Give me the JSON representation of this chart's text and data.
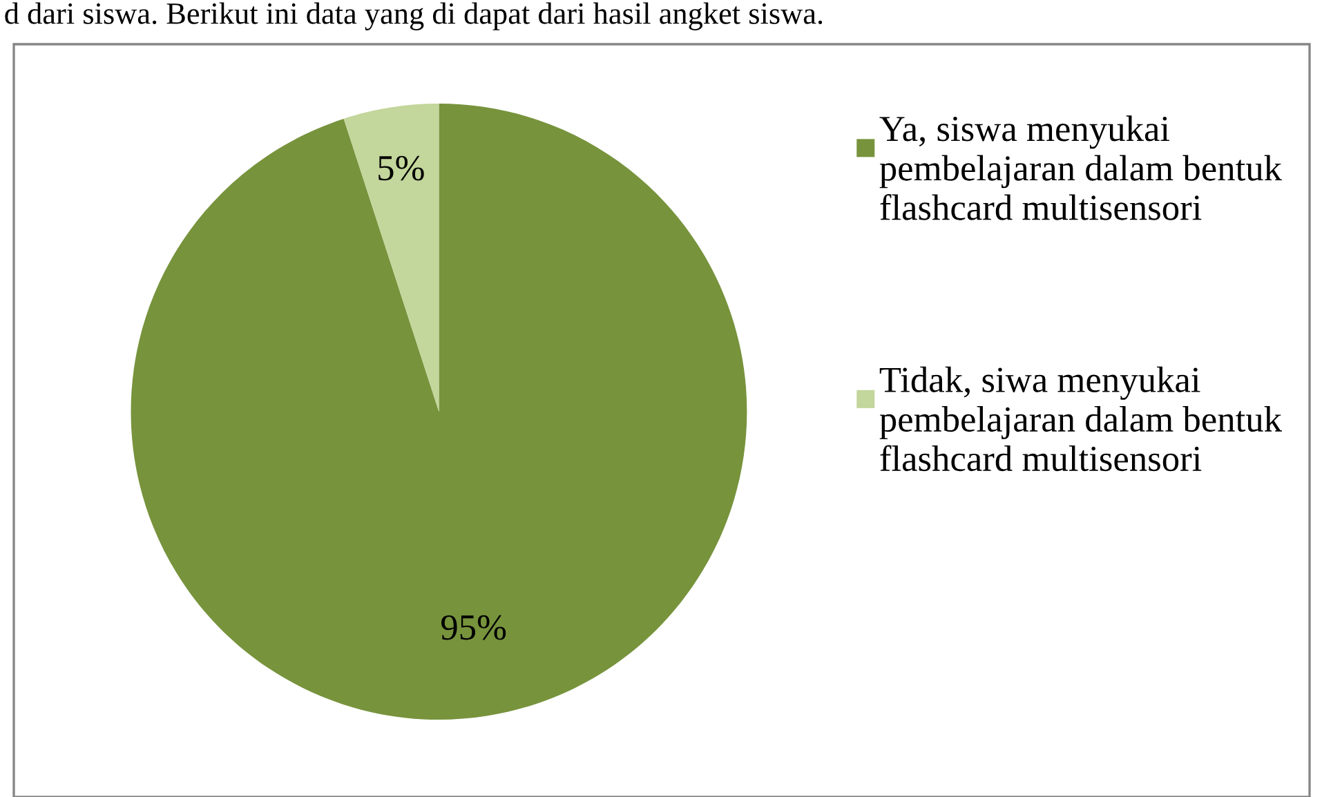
{
  "chart_data": {
    "type": "pie",
    "annotations": [
      "d dari siswa. Berikut ini data yang di dapat dari hasil angket siswa."
    ],
    "categories": [
      "Ya, siswa menyukai pembelajaran dalam bentuk flashcard multisensori",
      "Tidak, siwa menyukai pembelajaran dalam bentuk flashcard multisensori"
    ],
    "values": [
      95,
      5
    ],
    "colors": [
      "#77933c",
      "#c3d69b"
    ],
    "value_labels": [
      "95%",
      "5%"
    ],
    "legend": "right"
  }
}
